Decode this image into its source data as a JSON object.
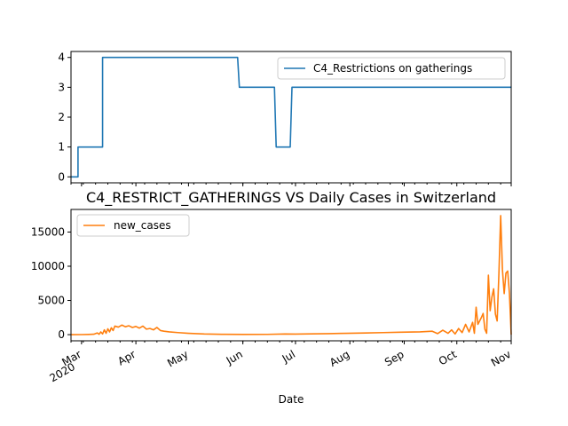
{
  "colors": {
    "blue": "#1f77b4",
    "orange": "#ff7f0e"
  },
  "chart_data": [
    {
      "type": "line",
      "title": "",
      "xlabel": "",
      "ylabel": "",
      "xlim": [
        "2020-02-24",
        "2020-11-01"
      ],
      "ylim": [
        -0.2,
        4.2
      ],
      "y_ticks": [
        0,
        1,
        2,
        3,
        4
      ],
      "grid": false,
      "legend_position": "top-right",
      "series": [
        {
          "name": "C4_Restrictions on gatherings",
          "color": "#1f77b4",
          "step": true,
          "points": [
            [
              "2020-02-24",
              0
            ],
            [
              "2020-02-28",
              0
            ],
            [
              "2020-02-28",
              1
            ],
            [
              "2020-03-13",
              1
            ],
            [
              "2020-03-13",
              4
            ],
            [
              "2020-05-29",
              4
            ],
            [
              "2020-05-30",
              3
            ],
            [
              "2020-06-19",
              3
            ],
            [
              "2020-06-20",
              1
            ],
            [
              "2020-06-28",
              1
            ],
            [
              "2020-06-29",
              3
            ],
            [
              "2020-11-01",
              3
            ]
          ]
        }
      ]
    },
    {
      "type": "line",
      "title": "C4_RESTRICT_GATHERINGS VS Daily Cases in Switzerland",
      "xlabel": "Date",
      "ylabel": "",
      "xlim": [
        "2020-02-24",
        "2020-11-01"
      ],
      "ylim": [
        -900,
        18300
      ],
      "y_ticks": [
        0,
        5000,
        10000,
        15000
      ],
      "x_ticks": [
        {
          "date": "2020-03-01",
          "label": "Mar",
          "sublabel": "2020"
        },
        {
          "date": "2020-04-01",
          "label": "Apr",
          "sublabel": ""
        },
        {
          "date": "2020-05-01",
          "label": "May",
          "sublabel": ""
        },
        {
          "date": "2020-06-01",
          "label": "Jun",
          "sublabel": ""
        },
        {
          "date": "2020-07-01",
          "label": "Jul",
          "sublabel": ""
        },
        {
          "date": "2020-08-01",
          "label": "Aug",
          "sublabel": ""
        },
        {
          "date": "2020-09-01",
          "label": "Sep",
          "sublabel": ""
        },
        {
          "date": "2020-10-01",
          "label": "Oct",
          "sublabel": ""
        },
        {
          "date": "2020-11-01",
          "label": "Nov",
          "sublabel": ""
        }
      ],
      "grid": false,
      "legend_position": "top-left",
      "series": [
        {
          "name": "new_cases",
          "color": "#ff7f0e",
          "points": [
            [
              "2020-02-24",
              0
            ],
            [
              "2020-03-01",
              10
            ],
            [
              "2020-03-05",
              30
            ],
            [
              "2020-03-08",
              60
            ],
            [
              "2020-03-10",
              250
            ],
            [
              "2020-03-11",
              50
            ],
            [
              "2020-03-12",
              400
            ],
            [
              "2020-03-13",
              100
            ],
            [
              "2020-03-14",
              700
            ],
            [
              "2020-03-15",
              200
            ],
            [
              "2020-03-16",
              850
            ],
            [
              "2020-03-17",
              400
            ],
            [
              "2020-03-18",
              1000
            ],
            [
              "2020-03-19",
              600
            ],
            [
              "2020-03-20",
              1250
            ],
            [
              "2020-03-22",
              1100
            ],
            [
              "2020-03-24",
              1400
            ],
            [
              "2020-03-26",
              1150
            ],
            [
              "2020-03-28",
              1300
            ],
            [
              "2020-03-30",
              1050
            ],
            [
              "2020-04-01",
              1200
            ],
            [
              "2020-04-03",
              950
            ],
            [
              "2020-04-05",
              1250
            ],
            [
              "2020-04-07",
              800
            ],
            [
              "2020-04-09",
              900
            ],
            [
              "2020-04-11",
              700
            ],
            [
              "2020-04-13",
              1050
            ],
            [
              "2020-04-15",
              600
            ],
            [
              "2020-04-17",
              500
            ],
            [
              "2020-04-20",
              400
            ],
            [
              "2020-04-25",
              300
            ],
            [
              "2020-05-01",
              200
            ],
            [
              "2020-05-10",
              100
            ],
            [
              "2020-05-20",
              50
            ],
            [
              "2020-06-01",
              30
            ],
            [
              "2020-06-15",
              40
            ],
            [
              "2020-06-25",
              100
            ],
            [
              "2020-07-01",
              80
            ],
            [
              "2020-07-10",
              120
            ],
            [
              "2020-07-20",
              150
            ],
            [
              "2020-07-30",
              200
            ],
            [
              "2020-08-10",
              250
            ],
            [
              "2020-08-20",
              300
            ],
            [
              "2020-08-30",
              350
            ],
            [
              "2020-09-10",
              400
            ],
            [
              "2020-09-17",
              500
            ],
            [
              "2020-09-20",
              150
            ],
            [
              "2020-09-23",
              650
            ],
            [
              "2020-09-26",
              200
            ],
            [
              "2020-09-28",
              700
            ],
            [
              "2020-09-30",
              100
            ],
            [
              "2020-10-02",
              900
            ],
            [
              "2020-10-04",
              300
            ],
            [
              "2020-10-06",
              1500
            ],
            [
              "2020-10-08",
              400
            ],
            [
              "2020-10-10",
              1800
            ],
            [
              "2020-10-11",
              200
            ],
            [
              "2020-10-12",
              4000
            ],
            [
              "2020-10-13",
              1500
            ],
            [
              "2020-10-15",
              2500
            ],
            [
              "2020-10-16",
              3100
            ],
            [
              "2020-10-17",
              800
            ],
            [
              "2020-10-18",
              200
            ],
            [
              "2020-10-19",
              8700
            ],
            [
              "2020-10-20",
              3500
            ],
            [
              "2020-10-21",
              5500
            ],
            [
              "2020-10-22",
              6700
            ],
            [
              "2020-10-23",
              3000
            ],
            [
              "2020-10-24",
              2000
            ],
            [
              "2020-10-25",
              9000
            ],
            [
              "2020-10-26",
              17400
            ],
            [
              "2020-10-27",
              9500
            ],
            [
              "2020-10-28",
              6000
            ],
            [
              "2020-10-29",
              9000
            ],
            [
              "2020-10-30",
              9300
            ],
            [
              "2020-10-31",
              6000
            ],
            [
              "2020-11-01",
              0
            ]
          ]
        }
      ]
    }
  ]
}
